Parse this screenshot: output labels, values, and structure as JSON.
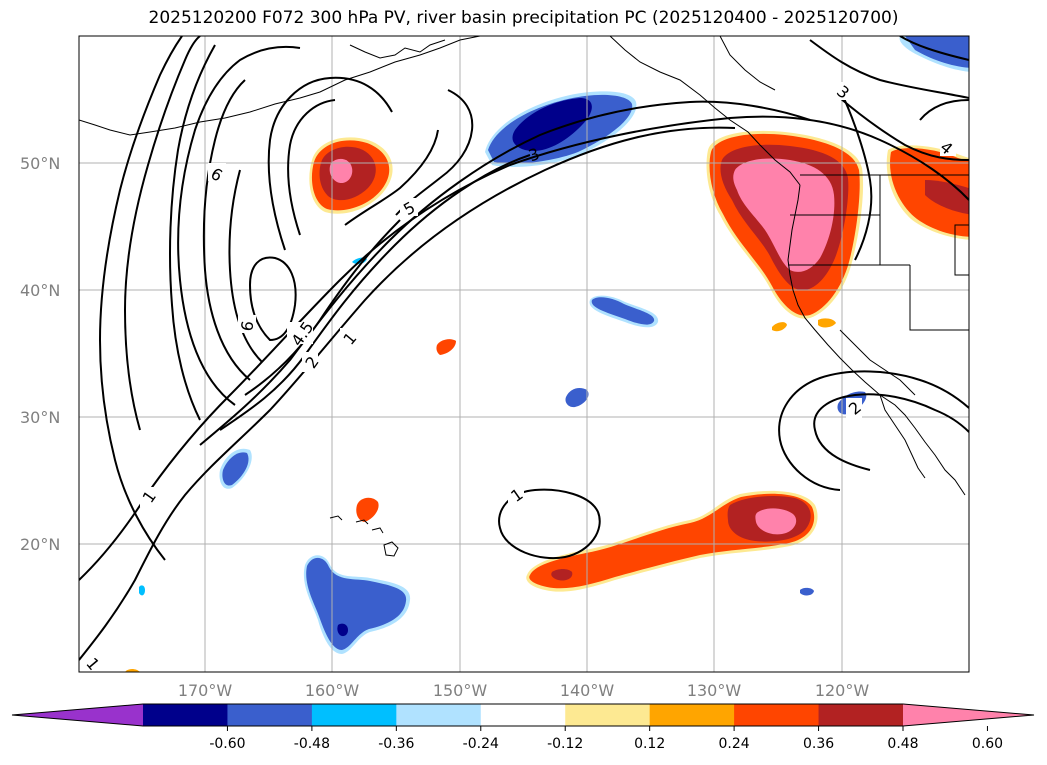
{
  "title": "2025120200 F072 300 hPa PV, river basin precipitation PC (2025120400 - 2025120700)",
  "longitude_labels": [
    "170°W",
    "160°W",
    "150°W",
    "140°W",
    "130°W",
    "120°W"
  ],
  "latitude_labels": [
    "50°N",
    "40°N",
    "30°N",
    "20°N"
  ],
  "contour_labels": [
    "6",
    "5",
    "3",
    "3",
    "4",
    "6",
    "4.5",
    "2",
    "1",
    "1",
    "1",
    "2",
    "1"
  ],
  "colorbar": {
    "ticks": [
      "-0.60",
      "-0.48",
      "-0.36",
      "-0.24",
      "-0.12",
      "0.12",
      "0.24",
      "0.36",
      "0.48",
      "0.60"
    ],
    "colors": [
      "#9932cc",
      "#00008b",
      "#3a5fcd",
      "#00bfff",
      "#b0e2ff",
      "#ffffff",
      "#fde992",
      "#ffa500",
      "#ff4500",
      "#b22222",
      "#ff82ab"
    ]
  }
}
